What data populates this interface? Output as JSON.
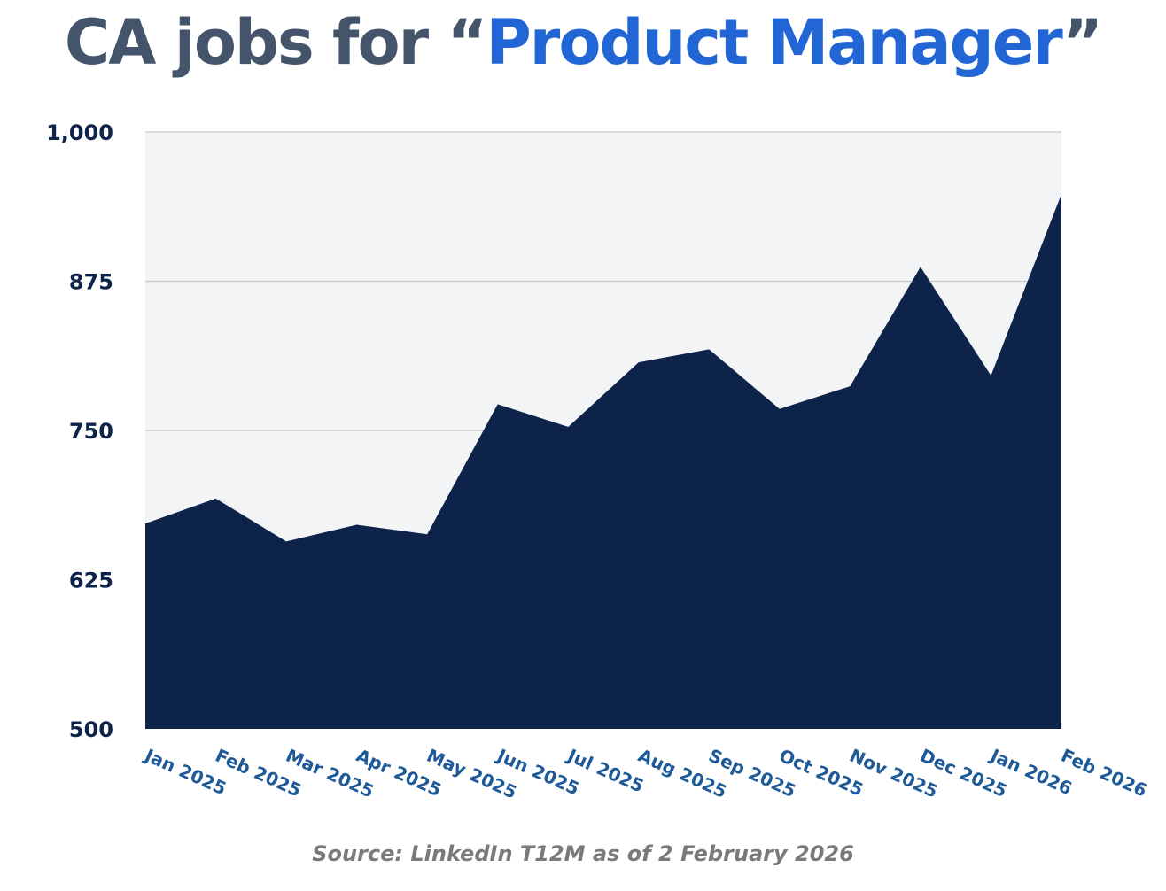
{
  "title": {
    "prefix": "CA jobs for “",
    "highlight": "Product Manager",
    "suffix": "”"
  },
  "source": "Source: LinkedIn T12M as of 2 February 2026",
  "colors": {
    "title_gray": "#44546b",
    "title_blue": "#2266d6",
    "area_fill": "#0e2349",
    "plot_bg": "#f3f4f6",
    "gridline": "#c4c6ca",
    "y_tick_text": "#0e2349",
    "x_tick_text": "#1f5a98",
    "source_text": "#7a7a7a"
  },
  "chart_data": {
    "type": "area",
    "categories": [
      "Jan 2025",
      "Feb 2025",
      "Mar 2025",
      "Apr 2025",
      "May 2025",
      "Jun 2025",
      "Jul 2025",
      "Aug 2025",
      "Sep 2025",
      "Oct 2025",
      "Nov 2025",
      "Dec 2025",
      "Jan 2026",
      "Feb 2026"
    ],
    "series": [
      {
        "values": [
          672,
          693,
          657,
          671,
          663,
          772,
          753,
          807,
          818,
          768,
          787,
          887,
          796,
          948
        ]
      }
    ],
    "y_ticks": [
      {
        "value": 1000,
        "label": "1,000"
      },
      {
        "value": 875,
        "label": "875"
      },
      {
        "value": 750,
        "label": "750"
      },
      {
        "value": 625,
        "label": "625"
      },
      {
        "value": 500,
        "label": "500"
      }
    ],
    "ylim": [
      500,
      1000
    ],
    "xlabel": "",
    "ylabel": "",
    "grid": true,
    "legend": "none"
  }
}
